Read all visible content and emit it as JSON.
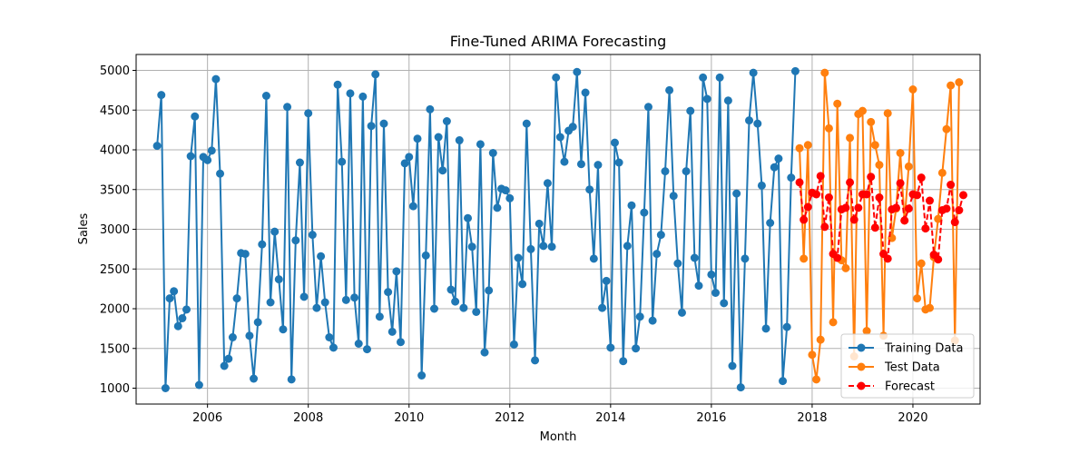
{
  "chart_data": {
    "type": "line",
    "title": "Fine-Tuned ARIMA Forecasting",
    "xlabel": "Month",
    "ylabel": "Sales",
    "x_tick_labels": [
      "2006",
      "2008",
      "2010",
      "2012",
      "2014",
      "2016",
      "2018",
      "2020"
    ],
    "x_tick_years": [
      2006,
      2008,
      2010,
      2012,
      2014,
      2016,
      2018,
      2020
    ],
    "y_ticks": [
      1000,
      1500,
      2000,
      2500,
      3000,
      3500,
      4000,
      4500,
      5000
    ],
    "xlim": [
      "2004-08",
      "2021-05"
    ],
    "ylim": [
      800,
      5200
    ],
    "grid": true,
    "legend_placement": "bottom-right",
    "series": [
      {
        "name": "Training Data",
        "color": "#1f77b4",
        "line_style": "solid",
        "start": "2005-01",
        "values": [
          4050,
          4690,
          1000,
          2130,
          2220,
          1780,
          1880,
          1990,
          3920,
          4420,
          1040,
          3910,
          3870,
          3990,
          4890,
          3700,
          1280,
          1370,
          1640,
          2130,
          2700,
          2690,
          1660,
          1120,
          1830,
          2810,
          4680,
          2080,
          2970,
          2370,
          1740,
          4540,
          1110,
          2860,
          3840,
          2150,
          4460,
          2930,
          2010,
          2660,
          2080,
          1640,
          1510,
          4820,
          3850,
          2110,
          4710,
          2140,
          1560,
          4670,
          1490,
          4300,
          4950,
          1900,
          4330,
          2210,
          1710,
          2470,
          1580,
          3830,
          3910,
          3290,
          4140,
          1160,
          2670,
          4510,
          2000,
          4160,
          3740,
          4360,
          2240,
          2090,
          4120,
          2010,
          3140,
          2780,
          1960,
          4070,
          1450,
          2230,
          3960,
          3270,
          3510,
          3490,
          3390,
          1550,
          2640,
          2310,
          4330,
          2750,
          1350,
          3070,
          2790,
          3580,
          2780,
          4910,
          4160,
          3850,
          4240,
          4290,
          4980,
          3820,
          4720,
          3500,
          2630,
          3810,
          2010,
          2350,
          1510,
          4090,
          3840,
          1340,
          2790,
          3300,
          1500,
          1900,
          3210,
          4540,
          1850,
          2690,
          2930,
          3730,
          4750,
          3420,
          2570,
          1950,
          3730,
          4490,
          2640,
          2290,
          4910,
          4640,
          2430,
          2200,
          4910,
          2070,
          4620,
          1280,
          3450,
          1010,
          2630,
          4370,
          4970,
          4330,
          3550,
          1750,
          3080,
          3780,
          3890,
          1090,
          1770,
          3650,
          4990
        ]
      },
      {
        "name": "Test Data",
        "color": "#ff7f0e",
        "line_style": "solid",
        "start": "2017-10",
        "values": [
          4020,
          2630,
          4060,
          1420,
          1110,
          1610,
          4970,
          4270,
          1830,
          4580,
          2610,
          2510,
          4150,
          1400,
          4450,
          4490,
          1720,
          4350,
          4060,
          3810,
          1660,
          4460,
          2890,
          3260,
          3960,
          3110,
          3790,
          4760,
          2130,
          2570,
          1990,
          2010,
          2650,
          3130,
          3710,
          4260,
          4810,
          1600,
          4850
        ]
      },
      {
        "name": "Forecast",
        "color": "#ff0000",
        "line_style": "dashed",
        "start": "2017-10",
        "values": [
          3590,
          3120,
          3280,
          3460,
          3440,
          3670,
          3030,
          3400,
          2690,
          2640,
          3250,
          3270,
          3590,
          3120,
          3270,
          3440,
          3440,
          3660,
          3020,
          3400,
          2690,
          2630,
          3250,
          3270,
          3580,
          3110,
          3260,
          3440,
          3430,
          3650,
          3010,
          3360,
          2680,
          2620,
          3240,
          3260,
          3560,
          3090,
          3240,
          3430
        ]
      }
    ]
  }
}
